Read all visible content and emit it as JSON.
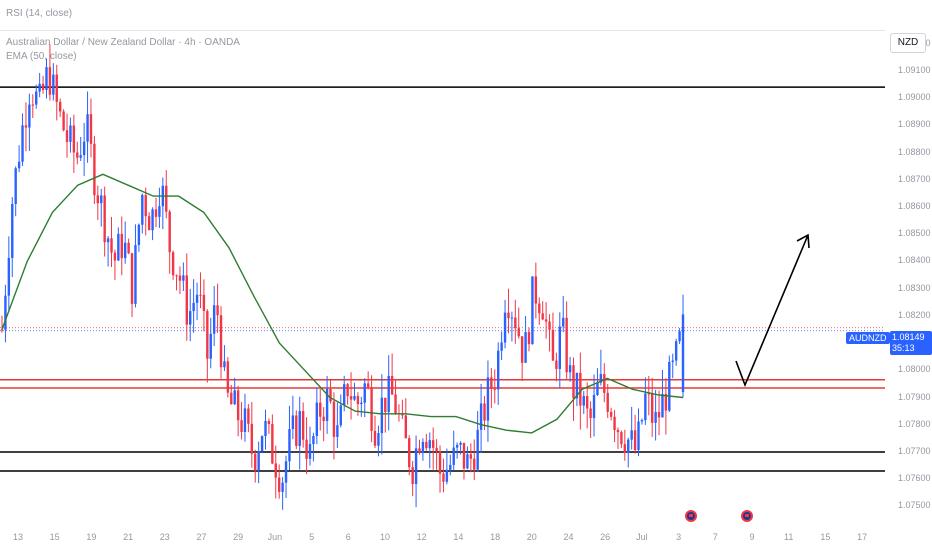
{
  "header": {
    "rsi_label": "RSI (14, close)",
    "title": "Australian Dollar / New Zealand Dollar · 4h · OANDA",
    "ema_label": "EMA (50, close)"
  },
  "currency_button": "NZD",
  "symbol_tag": "AUDNZD",
  "last_price": "1.08149",
  "countdown": "35:13",
  "colors": {
    "up": "#2962ff",
    "down": "#f23645",
    "ema": "#2e7d32",
    "support_lines": "#000000",
    "resistance_zone": "#e53935"
  },
  "icons": [
    "australia-flag-icon",
    "australia-flag-icon"
  ],
  "chart_data": {
    "type": "candlestick",
    "instrument": "AUDNZD",
    "timeframe": "4h",
    "ylim": [
      1.0745,
      1.0925
    ],
    "y_ticks": [
      "1.09200",
      "1.09100",
      "1.09000",
      "1.08900",
      "1.08800",
      "1.08700",
      "1.08600",
      "1.08500",
      "1.08400",
      "1.08300",
      "1.08200",
      "1.08000",
      "1.07900",
      "1.07800",
      "1.07700",
      "1.07600",
      "1.07500"
    ],
    "x_ticks": [
      "13",
      "15",
      "19",
      "21",
      "23",
      "27",
      "29",
      "Jun",
      "5",
      "6",
      "10",
      "12",
      "14",
      "18",
      "20",
      "24",
      "26",
      "Jul",
      "3",
      "7",
      "9",
      "11",
      "15",
      "17"
    ],
    "horizontal_lines": [
      1.0904,
      1.077,
      1.0763
    ],
    "red_zone": [
      1.07935,
      1.07965
    ],
    "last_close": 1.08149,
    "projection_arrow": {
      "from": [
        1.0795
      ],
      "to": [
        1.0855
      ]
    },
    "price_path": [
      1.0815,
      1.086,
      1.0885,
      1.0905,
      1.0897,
      1.091,
      1.0895,
      1.0885,
      1.0878,
      1.089,
      1.087,
      1.0855,
      1.084,
      1.0848,
      1.083,
      1.0865,
      1.0855,
      1.087,
      1.0845,
      1.0835,
      1.082,
      1.083,
      1.0805,
      1.0825,
      1.079,
      1.0785,
      1.078,
      1.0768,
      1.078,
      1.077,
      1.076,
      1.0775,
      1.0782,
      1.0768,
      1.0785,
      1.079,
      1.0775,
      1.0795,
      1.0787,
      1.0795,
      1.078,
      1.079,
      1.079,
      1.0775,
      1.0765,
      1.078,
      1.0775,
      1.0762,
      1.0765,
      1.077,
      1.0765,
      1.0775,
      1.079,
      1.08,
      1.083,
      1.082,
      1.0805,
      1.083,
      1.0825,
      1.08,
      1.0815,
      1.0795,
      1.079,
      1.078,
      1.0795,
      1.079,
      1.078,
      1.0775,
      1.077,
      1.079,
      1.078,
      1.079,
      1.08,
      1.0815
    ],
    "ema_50": [
      1.0815,
      1.084,
      1.0858,
      1.0868,
      1.0872,
      1.0868,
      1.0864,
      1.0864,
      1.0858,
      1.0845,
      1.0827,
      1.081,
      1.08,
      1.079,
      1.0785,
      1.0784,
      1.0784,
      1.0783,
      1.0783,
      1.078,
      1.0778,
      1.0777,
      1.0782,
      1.0793,
      1.0797,
      1.0793,
      1.0791,
      1.079
    ]
  }
}
